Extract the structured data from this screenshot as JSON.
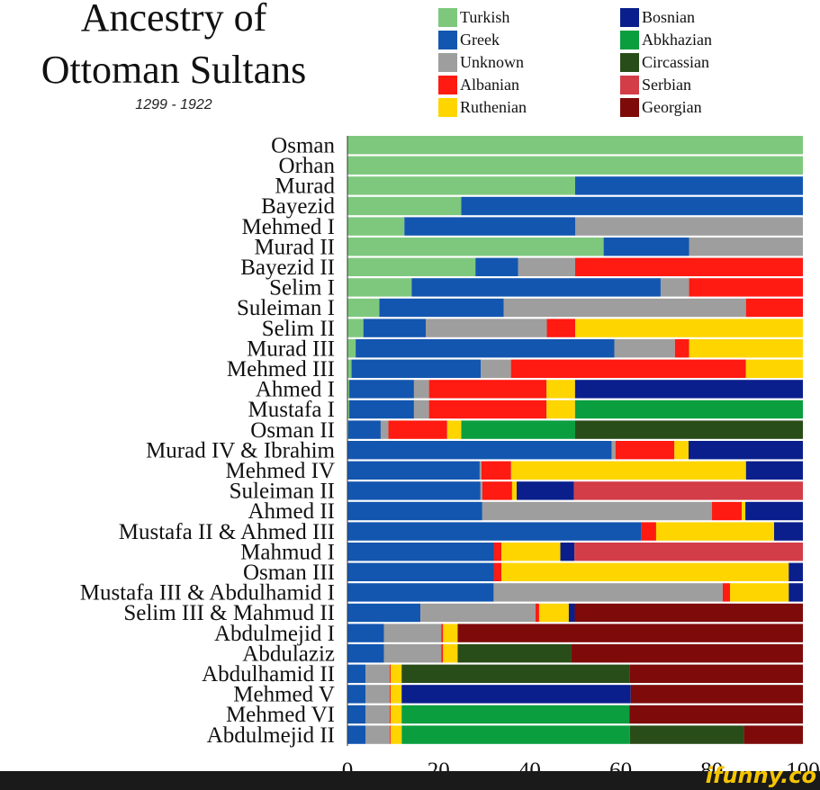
{
  "header": {
    "title_line1": "Ancestry of",
    "title_line2": "Ottoman Sultans",
    "subtitle": "1299 - 1922"
  },
  "legend": [
    {
      "name": "Turkish",
      "color": "#7ec87e"
    },
    {
      "name": "Greek",
      "color": "#1356b0"
    },
    {
      "name": "Unknown",
      "color": "#9e9e9e"
    },
    {
      "name": "Albanian",
      "color": "#ff1a12"
    },
    {
      "name": "Ruthenian",
      "color": "#ffd500"
    },
    {
      "name": "Bosnian",
      "color": "#0a1f8c"
    },
    {
      "name": "Abkhazian",
      "color": "#0a9e3f"
    },
    {
      "name": "Circassian",
      "color": "#294d18"
    },
    {
      "name": "Serbian",
      "color": "#d33d48"
    },
    {
      "name": "Georgian",
      "color": "#7e0a0a"
    }
  ],
  "chart_data": {
    "type": "bar",
    "orientation": "horizontal",
    "stacked": true,
    "xlim": [
      0,
      100
    ],
    "xticks": [
      0,
      20,
      40,
      60,
      80,
      100
    ],
    "categories": [
      "Osman",
      "Orhan",
      "Murad",
      "Bayezid",
      "Mehmed I",
      "Murad II",
      "Bayezid II",
      "Selim I",
      "Suleiman I",
      "Selim II",
      "Murad III",
      "Mehmed III",
      "Ahmed I",
      "Mustafa I",
      "Osman II",
      "Murad IV & Ibrahim",
      "Mehmed IV",
      "Suleiman II",
      "Ahmed II",
      "Mustafa II & Ahmed III",
      "Mahmud I",
      "Osman III",
      "Mustafa III & Abdulhamid I",
      "Selim III & Mahmud II",
      "Abdulmejid I",
      "Abdulaziz",
      "Abdulhamid II",
      "Mehmed V",
      "Mehmed VI",
      "Abdulmejid II"
    ],
    "series": [
      {
        "name": "Turkish",
        "values": [
          100,
          100,
          50,
          25,
          12.5,
          56.25,
          28.1,
          14.1,
          7,
          3.5,
          1.8,
          0.9,
          0.4,
          0.4,
          0.2,
          0.1,
          0.05,
          0.05,
          0.03,
          0.01,
          0.01,
          0.01,
          0,
          0,
          0,
          0,
          0,
          0,
          0,
          0
        ]
      },
      {
        "name": "Greek",
        "values": [
          0,
          0,
          50,
          75,
          37.5,
          18.75,
          9.4,
          54.7,
          27.3,
          13.7,
          56.8,
          28.4,
          14.2,
          14.2,
          7.1,
          57.7,
          29,
          29,
          29.5,
          64.3,
          32.1,
          32.1,
          32.1,
          16,
          8,
          8,
          4,
          4,
          4,
          4
        ]
      },
      {
        "name": "Unknown",
        "values": [
          0,
          0,
          0,
          0,
          50,
          25,
          12.5,
          6.25,
          53.1,
          26.6,
          13.3,
          6.6,
          3.3,
          3.3,
          1.7,
          0.8,
          0.4,
          0.4,
          50.3,
          0,
          0,
          0,
          50.3,
          25.2,
          12.6,
          12.6,
          5.3,
          5.3,
          5.3,
          5.3
        ]
      },
      {
        "name": "Albanian",
        "values": [
          0,
          0,
          0,
          0,
          0,
          0,
          50,
          25,
          12.5,
          6.25,
          3.1,
          51.6,
          25.8,
          25.8,
          12.9,
          12.9,
          6.5,
          6.5,
          6.5,
          3.2,
          1.6,
          1.6,
          1.6,
          0.8,
          0.4,
          0.4,
          0.2,
          0.2,
          0.2,
          0.2
        ]
      },
      {
        "name": "Ruthenian",
        "values": [
          0,
          0,
          0,
          0,
          0,
          0,
          0,
          0,
          0,
          50,
          25,
          12.5,
          6.25,
          6.25,
          3.1,
          3.1,
          51.6,
          1,
          0.8,
          25.8,
          12.9,
          62.9,
          12.9,
          6.5,
          3.2,
          3.2,
          2.4,
          2.4,
          2.4,
          2.4
        ]
      },
      {
        "name": "Bosnian",
        "values": [
          0,
          0,
          0,
          0,
          0,
          0,
          0,
          0,
          0,
          0,
          0,
          0,
          50,
          0,
          0,
          25,
          12.5,
          12.5,
          12.6,
          6.3,
          3.1,
          3.1,
          3.1,
          1.3,
          0,
          0,
          0,
          50.3,
          0,
          0
        ]
      },
      {
        "name": "Abkhazian",
        "values": [
          0,
          0,
          0,
          0,
          0,
          0,
          0,
          0,
          0,
          0,
          0,
          0,
          0,
          50,
          25,
          0,
          0,
          0,
          0,
          0,
          0,
          0,
          0,
          0,
          0,
          0,
          0,
          0,
          50,
          50
        ]
      },
      {
        "name": "Circassian",
        "values": [
          0,
          0,
          0,
          0,
          0,
          0,
          0,
          0,
          0,
          0,
          0,
          0,
          0,
          0,
          50,
          0,
          0,
          0,
          0,
          0,
          0,
          0,
          0,
          0,
          0,
          25,
          50,
          0,
          0,
          25
        ]
      },
      {
        "name": "Serbian",
        "values": [
          0,
          0,
          0,
          0,
          0,
          0,
          0,
          0,
          0,
          0,
          0,
          0,
          0,
          0,
          0,
          0,
          0,
          50,
          0,
          0,
          50,
          0,
          0,
          0,
          0,
          0,
          0,
          0,
          0,
          0
        ]
      },
      {
        "name": "Georgian",
        "values": [
          0,
          0,
          0,
          0,
          0,
          0,
          0,
          0,
          0,
          0,
          0,
          0,
          0,
          0,
          0,
          0,
          0,
          0,
          0,
          0,
          0,
          0,
          0,
          50,
          75.8,
          50.8,
          38.1,
          37.8,
          38.1,
          12.9
        ]
      }
    ],
    "grid": false,
    "legend_position": "top-right"
  },
  "watermark": "ifunny.co"
}
